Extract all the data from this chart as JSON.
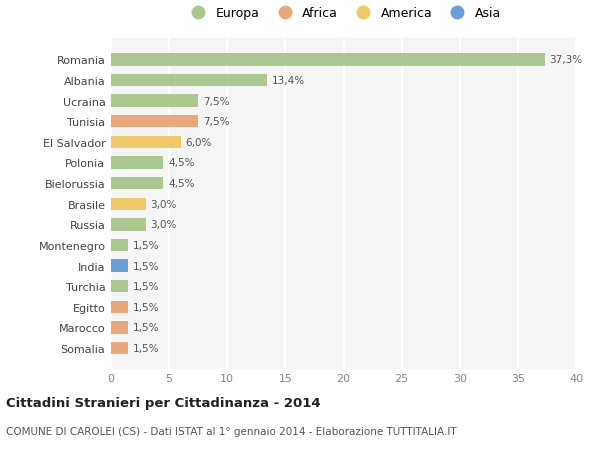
{
  "categories": [
    "Romania",
    "Albania",
    "Ucraina",
    "Tunisia",
    "El Salvador",
    "Polonia",
    "Bielorussia",
    "Brasile",
    "Russia",
    "Montenegro",
    "India",
    "Turchia",
    "Egitto",
    "Marocco",
    "Somalia"
  ],
  "values": [
    37.3,
    13.4,
    7.5,
    7.5,
    6.0,
    4.5,
    4.5,
    3.0,
    3.0,
    1.5,
    1.5,
    1.5,
    1.5,
    1.5,
    1.5
  ],
  "continents": [
    "Europa",
    "Europa",
    "Europa",
    "Africa",
    "America",
    "Europa",
    "Europa",
    "America",
    "Europa",
    "Europa",
    "Asia",
    "Europa",
    "Africa",
    "Africa",
    "Africa"
  ],
  "labels": [
    "37,3%",
    "13,4%",
    "7,5%",
    "7,5%",
    "6,0%",
    "4,5%",
    "4,5%",
    "3,0%",
    "3,0%",
    "1,5%",
    "1,5%",
    "1,5%",
    "1,5%",
    "1,5%",
    "1,5%"
  ],
  "colors": {
    "Europa": "#adc791",
    "Africa": "#e8a87c",
    "America": "#f0c96a",
    "Asia": "#6a9fd8"
  },
  "legend_order": [
    "Europa",
    "Africa",
    "America",
    "Asia"
  ],
  "title": "Cittadini Stranieri per Cittadinanza - 2014",
  "subtitle": "COMUNE DI CAROLEI (CS) - Dati ISTAT al 1° gennaio 2014 - Elaborazione TUTTITALIA.IT",
  "xlim": [
    0,
    40
  ],
  "xticks": [
    0,
    5,
    10,
    15,
    20,
    25,
    30,
    35,
    40
  ],
  "bg_color": "#f5f5f5",
  "grid_color": "#ffffff",
  "bar_height": 0.6
}
